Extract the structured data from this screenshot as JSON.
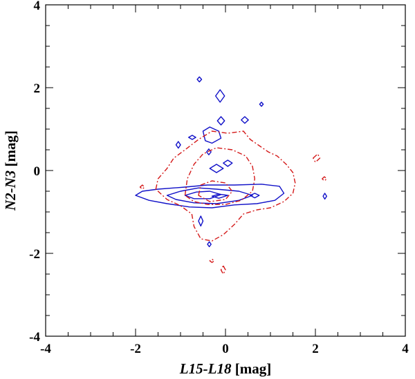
{
  "chart_data": {
    "type": "contour",
    "xlabel": {
      "italic": "L15-L18",
      "plain": " [mag]"
    },
    "ylabel": {
      "italic": "N2-N3",
      "plain": " [mag]"
    },
    "xlim": [
      -4,
      4
    ],
    "ylim": [
      -4,
      4
    ],
    "xticks": [
      -4,
      -2,
      0,
      2,
      4
    ],
    "yticks": [
      -4,
      -2,
      0,
      2,
      4
    ],
    "minor_ticks_per_major": 4,
    "series": [
      {
        "style": "solid",
        "color": "#1010c8",
        "contours": [
          [
            [
              -2.0,
              -0.6
            ],
            [
              -1.85,
              -0.5
            ],
            [
              -1.5,
              -0.45
            ],
            [
              -0.9,
              -0.4
            ],
            [
              -0.4,
              -0.35
            ],
            [
              0.2,
              -0.35
            ],
            [
              0.8,
              -0.33
            ],
            [
              1.2,
              -0.38
            ],
            [
              1.3,
              -0.55
            ],
            [
              1.1,
              -0.72
            ],
            [
              0.7,
              -0.8
            ],
            [
              0.2,
              -0.83
            ],
            [
              -0.3,
              -0.9
            ],
            [
              -0.8,
              -0.88
            ],
            [
              -1.3,
              -0.8
            ],
            [
              -1.7,
              -0.72
            ],
            [
              -2.0,
              -0.6
            ]
          ],
          [
            [
              -1.3,
              -0.6
            ],
            [
              -1.0,
              -0.5
            ],
            [
              -0.6,
              -0.42
            ],
            [
              -0.2,
              -0.45
            ],
            [
              0.3,
              -0.5
            ],
            [
              0.6,
              -0.6
            ],
            [
              0.3,
              -0.72
            ],
            [
              -0.2,
              -0.8
            ],
            [
              -0.7,
              -0.78
            ],
            [
              -1.1,
              -0.7
            ],
            [
              -1.3,
              -0.6
            ]
          ],
          [
            [
              -0.9,
              -0.6
            ],
            [
              -0.65,
              -0.52
            ],
            [
              -0.35,
              -0.5
            ],
            [
              -0.1,
              -0.58
            ],
            [
              -0.35,
              -0.68
            ],
            [
              -0.7,
              -0.68
            ],
            [
              -0.9,
              -0.6
            ]
          ],
          [
            [
              -0.3,
              -0.62
            ],
            [
              -0.15,
              -0.57
            ],
            [
              0.05,
              -0.6
            ],
            [
              -0.15,
              -0.67
            ],
            [
              -0.3,
              -0.62
            ]
          ],
          [
            [
              0.55,
              -0.6
            ],
            [
              0.65,
              -0.55
            ],
            [
              0.75,
              -0.6
            ],
            [
              0.65,
              -0.66
            ],
            [
              0.55,
              -0.6
            ]
          ],
          [
            [
              -0.6,
              -1.22
            ],
            [
              -0.55,
              -1.1
            ],
            [
              -0.5,
              -1.22
            ],
            [
              -0.55,
              -1.34
            ],
            [
              -0.6,
              -1.22
            ]
          ],
          [
            [
              -0.4,
              -1.78
            ],
            [
              -0.36,
              -1.72
            ],
            [
              -0.32,
              -1.78
            ],
            [
              -0.36,
              -1.84
            ],
            [
              -0.4,
              -1.78
            ]
          ],
          [
            [
              -0.5,
              0.95
            ],
            [
              -0.35,
              1.05
            ],
            [
              -0.15,
              0.95
            ],
            [
              -0.1,
              0.78
            ],
            [
              -0.3,
              0.66
            ],
            [
              -0.45,
              0.72
            ],
            [
              -0.5,
              0.95
            ]
          ],
          [
            [
              -0.35,
              0.05
            ],
            [
              -0.2,
              0.15
            ],
            [
              -0.05,
              0.05
            ],
            [
              -0.2,
              -0.05
            ],
            [
              -0.35,
              0.05
            ]
          ],
          [
            [
              -0.05,
              0.18
            ],
            [
              0.05,
              0.25
            ],
            [
              0.15,
              0.18
            ],
            [
              0.05,
              0.1
            ],
            [
              -0.05,
              0.18
            ]
          ],
          [
            [
              -0.22,
              1.8
            ],
            [
              -0.12,
              1.95
            ],
            [
              -0.02,
              1.8
            ],
            [
              -0.12,
              1.65
            ],
            [
              -0.22,
              1.8
            ]
          ],
          [
            [
              -0.18,
              1.2
            ],
            [
              -0.1,
              1.3
            ],
            [
              -0.02,
              1.2
            ],
            [
              -0.1,
              1.1
            ],
            [
              -0.18,
              1.2
            ]
          ],
          [
            [
              -0.63,
              2.2
            ],
            [
              -0.58,
              2.26
            ],
            [
              -0.53,
              2.2
            ],
            [
              -0.58,
              2.14
            ],
            [
              -0.63,
              2.2
            ]
          ],
          [
            [
              0.35,
              1.22
            ],
            [
              0.43,
              1.3
            ],
            [
              0.51,
              1.22
            ],
            [
              0.43,
              1.14
            ],
            [
              0.35,
              1.22
            ]
          ],
          [
            [
              0.76,
              1.6
            ],
            [
              0.8,
              1.65
            ],
            [
              0.84,
              1.6
            ],
            [
              0.8,
              1.55
            ],
            [
              0.76,
              1.6
            ]
          ],
          [
            [
              -0.82,
              0.8
            ],
            [
              -0.74,
              0.85
            ],
            [
              -0.66,
              0.8
            ],
            [
              -0.74,
              0.75
            ],
            [
              -0.82,
              0.8
            ]
          ],
          [
            [
              -1.1,
              0.62
            ],
            [
              -1.05,
              0.7
            ],
            [
              -1.0,
              0.62
            ],
            [
              -1.05,
              0.54
            ],
            [
              -1.1,
              0.62
            ]
          ],
          [
            [
              -0.42,
              0.45
            ],
            [
              -0.37,
              0.52
            ],
            [
              -0.32,
              0.45
            ],
            [
              -0.37,
              0.38
            ],
            [
              -0.42,
              0.45
            ]
          ],
          [
            [
              2.17,
              -0.62
            ],
            [
              2.21,
              -0.55
            ],
            [
              2.25,
              -0.62
            ],
            [
              2.21,
              -0.69
            ],
            [
              2.17,
              -0.62
            ]
          ]
        ]
      },
      {
        "style": "dashdot",
        "color": "#d41818",
        "contours": [
          [
            [
              -1.55,
              -0.45
            ],
            [
              -1.5,
              -0.2
            ],
            [
              -1.3,
              0.05
            ],
            [
              -1.15,
              0.3
            ],
            [
              -0.9,
              0.5
            ],
            [
              -0.6,
              0.75
            ],
            [
              -0.3,
              0.95
            ],
            [
              0.05,
              0.9
            ],
            [
              0.4,
              0.95
            ],
            [
              0.55,
              0.75
            ],
            [
              0.75,
              0.6
            ],
            [
              0.95,
              0.45
            ],
            [
              1.15,
              0.35
            ],
            [
              1.35,
              0.15
            ],
            [
              1.5,
              -0.05
            ],
            [
              1.55,
              -0.3
            ],
            [
              1.5,
              -0.55
            ],
            [
              1.3,
              -0.75
            ],
            [
              1.0,
              -0.9
            ],
            [
              0.7,
              -0.95
            ],
            [
              0.4,
              -1.05
            ],
            [
              0.2,
              -1.3
            ],
            [
              -0.05,
              -1.55
            ],
            [
              -0.3,
              -1.7
            ],
            [
              -0.55,
              -1.65
            ],
            [
              -0.7,
              -1.35
            ],
            [
              -0.75,
              -1.05
            ],
            [
              -1.0,
              -0.85
            ],
            [
              -1.3,
              -0.7
            ],
            [
              -1.55,
              -0.45
            ]
          ],
          [
            [
              -0.9,
              -0.6
            ],
            [
              -0.85,
              -0.2
            ],
            [
              -0.7,
              0.15
            ],
            [
              -0.5,
              0.4
            ],
            [
              -0.2,
              0.55
            ],
            [
              0.15,
              0.5
            ],
            [
              0.45,
              0.35
            ],
            [
              0.6,
              0.1
            ],
            [
              0.65,
              -0.2
            ],
            [
              0.6,
              -0.5
            ],
            [
              0.35,
              -0.72
            ],
            [
              0.0,
              -0.82
            ],
            [
              -0.4,
              -0.82
            ],
            [
              -0.7,
              -0.75
            ],
            [
              -0.9,
              -0.6
            ]
          ],
          [
            [
              -0.6,
              -0.6
            ],
            [
              -0.55,
              -0.35
            ],
            [
              -0.3,
              -0.25
            ],
            [
              0.0,
              -0.3
            ],
            [
              0.15,
              -0.5
            ],
            [
              0.0,
              -0.7
            ],
            [
              -0.35,
              -0.75
            ],
            [
              -0.6,
              -0.6
            ]
          ],
          [
            [
              -0.05,
              -2.3
            ],
            [
              0.0,
              -2.4
            ],
            [
              -0.05,
              -2.5
            ],
            [
              -0.1,
              -2.4
            ],
            [
              -0.05,
              -2.3
            ]
          ],
          [
            [
              -0.35,
              -2.18
            ],
            [
              -0.3,
              -2.22
            ],
            [
              -0.25,
              -2.18
            ],
            [
              -0.3,
              -2.14
            ],
            [
              -0.35,
              -2.18
            ]
          ],
          [
            [
              1.95,
              0.3
            ],
            [
              2.05,
              0.4
            ],
            [
              2.1,
              0.3
            ],
            [
              2.0,
              0.2
            ],
            [
              1.95,
              0.3
            ]
          ],
          [
            [
              2.15,
              -0.2
            ],
            [
              2.2,
              -0.15
            ],
            [
              2.25,
              -0.2
            ],
            [
              2.2,
              -0.25
            ],
            [
              2.15,
              -0.2
            ]
          ],
          [
            [
              -1.9,
              -0.4
            ],
            [
              -1.85,
              -0.35
            ],
            [
              -1.8,
              -0.4
            ],
            [
              -1.85,
              -0.45
            ],
            [
              -1.9,
              -0.4
            ]
          ]
        ]
      }
    ]
  }
}
